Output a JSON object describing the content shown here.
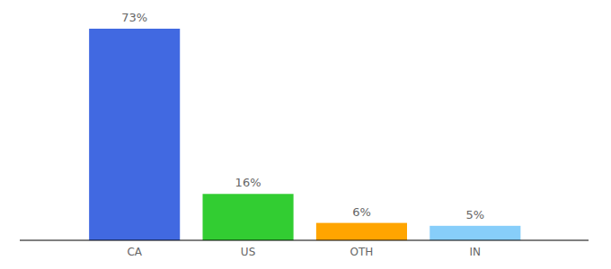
{
  "chart_data": {
    "type": "bar",
    "categories": [
      "CA",
      "US",
      "OTH",
      "IN"
    ],
    "values": [
      73,
      16,
      6,
      5
    ],
    "value_labels": [
      "73%",
      "16%",
      "6%",
      "5%"
    ],
    "colors": [
      "#4169e1",
      "#32cd32",
      "#ffa500",
      "#87cefa"
    ],
    "ylim": [
      0,
      73
    ],
    "data_labels": true,
    "tick_labels": "x"
  }
}
